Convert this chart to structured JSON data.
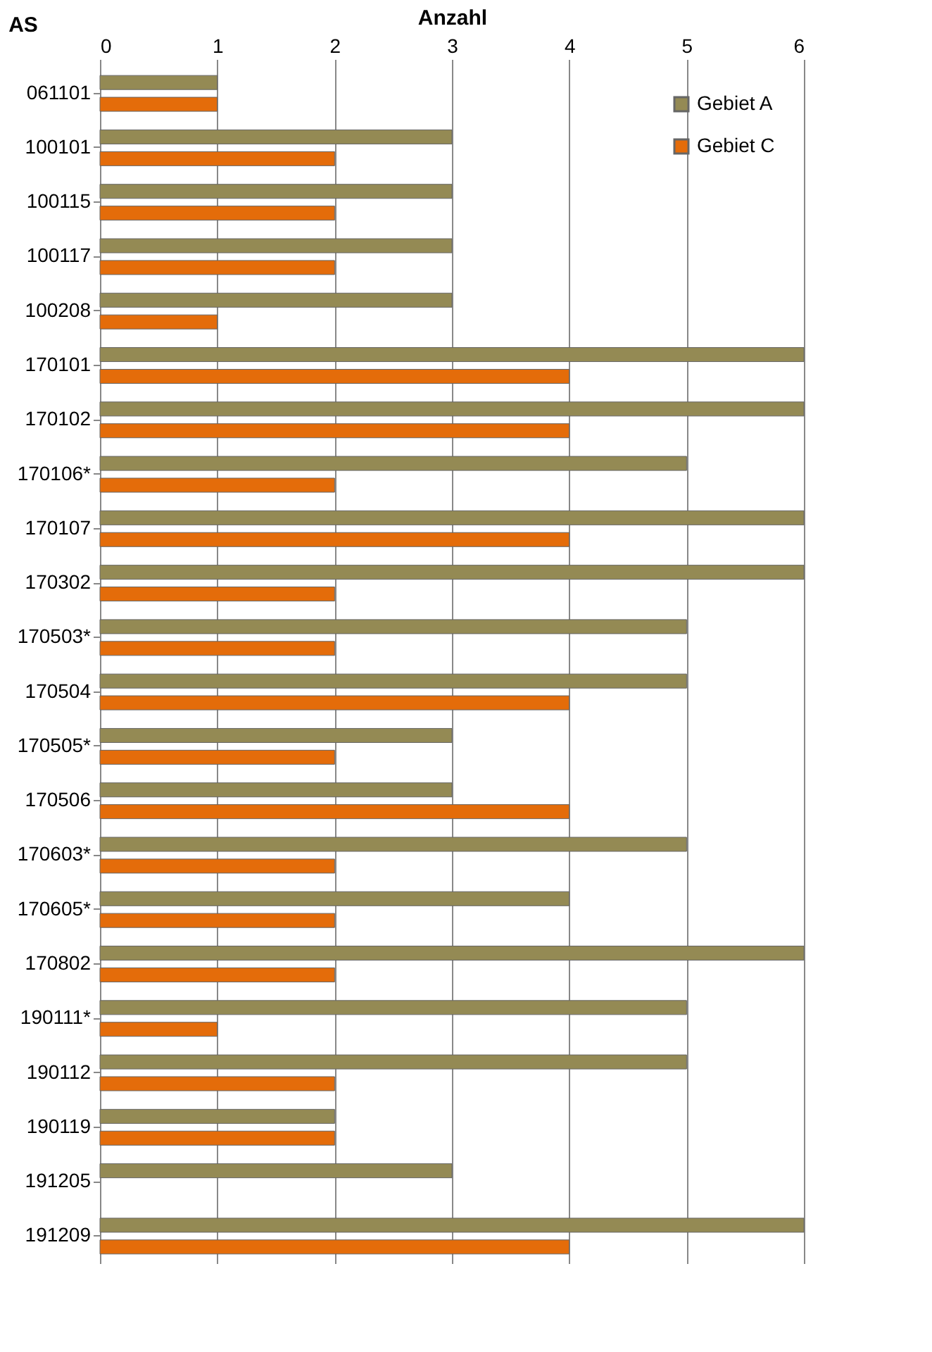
{
  "chart_data": {
    "type": "bar",
    "orientation": "horizontal",
    "xlabel": "Anzahl",
    "ylabel": "AS",
    "categories": [
      "061101",
      "100101",
      "100115",
      "100117",
      "100208",
      "170101",
      "170102",
      "170106*",
      "170107",
      "170302",
      "170503*",
      "170504",
      "170505*",
      "170506",
      "170603*",
      "170605*",
      "170802",
      "190111*",
      "190112",
      "190119",
      "191205",
      "191209"
    ],
    "series": [
      {
        "name": "Gebiet A",
        "color": "#948a54",
        "values": [
          1,
          3,
          3,
          3,
          3,
          6,
          6,
          5,
          6,
          6,
          5,
          5,
          3,
          3,
          5,
          4,
          6,
          5,
          5,
          2,
          3,
          6
        ]
      },
      {
        "name": "Gebiet C",
        "color": "#e46c0a",
        "values": [
          1,
          2,
          2,
          2,
          1,
          4,
          4,
          2,
          4,
          2,
          2,
          4,
          2,
          4,
          2,
          2,
          2,
          1,
          2,
          2,
          null,
          4
        ]
      }
    ],
    "xlim": [
      0,
      6
    ],
    "xticks": [
      0,
      1,
      2,
      3,
      4,
      5,
      6
    ],
    "grid": "x",
    "legend": "top right"
  }
}
